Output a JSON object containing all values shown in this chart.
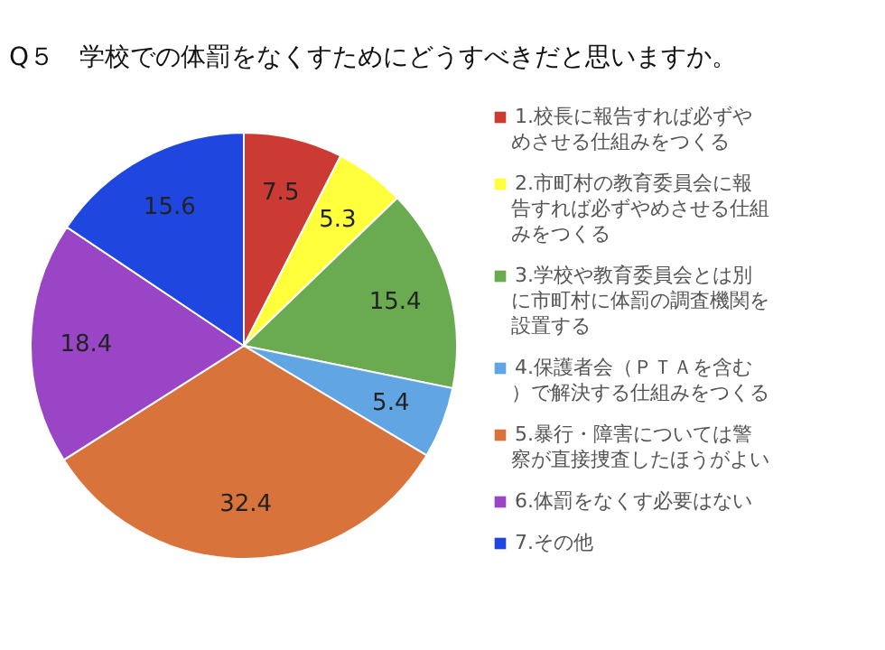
{
  "chart_data": {
    "type": "pie",
    "title": "Q５　学校での体罰をなくすためにどうすべきだと思いますか。",
    "categories": [
      "1.校長に報告すれば必ずやめさせる仕組みをつくる",
      "2.市町村の教育委員会に報告すれば必ずやめさせる仕組みをつくる",
      "3.学校や教育委員会とは別に市町村に体罰の調査機関を設置する",
      "4.保護者会（ＰＴＡを含む）で解決する仕組みをつくる",
      "5.暴行・障害については警察が直接捜査したほうがよい",
      "6.体罰をなくす必要はない",
      "7.その他"
    ],
    "values": [
      7.5,
      5.3,
      15.4,
      5.4,
      32.4,
      18.4,
      15.6
    ],
    "colors": [
      "#cc3b33",
      "#ffff3c",
      "#6aaa50",
      "#62a5e3",
      "#d8733c",
      "#9a45c6",
      "#2046e0"
    ],
    "data_labels": true,
    "legend": "right"
  }
}
